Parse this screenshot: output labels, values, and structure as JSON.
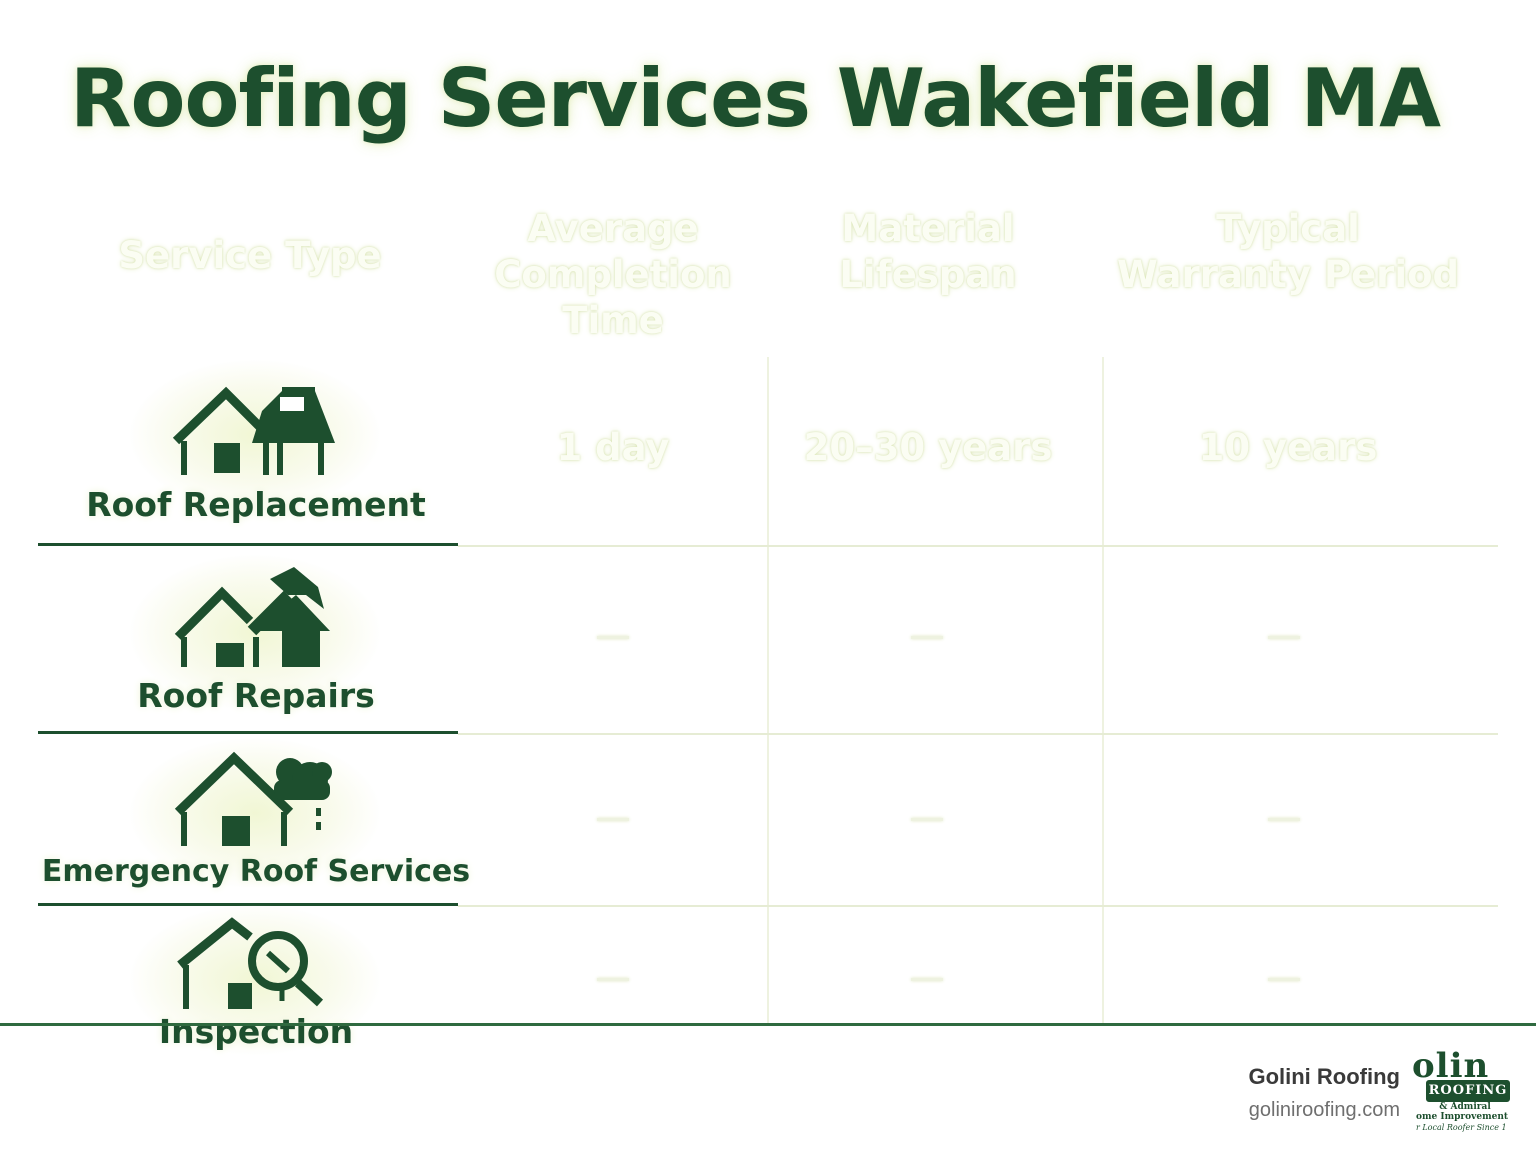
{
  "title": "Roofing Services Wakefield MA",
  "table": {
    "headers": {
      "service_type": "Service Type",
      "completion_time": [
        "Average",
        "Completion",
        "Time"
      ],
      "material_lifespan": [
        "Material",
        "Lifespan"
      ],
      "warranty": [
        "Typical",
        "Warranty Period"
      ]
    },
    "rows": [
      {
        "service": "Roof Replacement",
        "icon": "house-chimney-icon",
        "completion_time": "1 day",
        "material_lifespan": "20–30 years",
        "warranty": "10 years"
      },
      {
        "service": "Roof Repairs",
        "icon": "house-hammer-icon",
        "completion_time": "—",
        "material_lifespan": "—",
        "warranty": "—"
      },
      {
        "service": "Emergency Roof Services",
        "icon": "house-storm-cloud-icon",
        "completion_time": "—",
        "material_lifespan": "—",
        "warranty": "—"
      },
      {
        "service": "Inspection",
        "icon": "house-magnifier-icon",
        "completion_time": "—",
        "material_lifespan": "—",
        "warranty": "—"
      }
    ]
  },
  "footer": {
    "brand_name": "Golini Roofing",
    "brand_url": "goliniroofing.com",
    "logo": {
      "word": "olin",
      "banner": "ROOFING",
      "line1": "& Admiral",
      "line2": "ome Improvement",
      "line3": "r Local Roofer Since 1"
    }
  },
  "colors": {
    "accent": "#1d4f2e",
    "glow": "#eef4d8"
  }
}
